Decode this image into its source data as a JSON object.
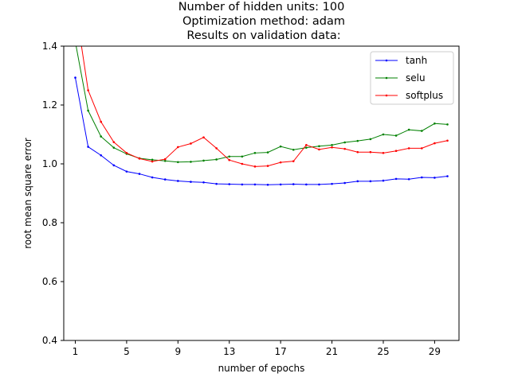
{
  "chart_data": {
    "type": "line",
    "title": [
      "Number of hidden units: 100",
      "Optimization method: adam",
      "Results on validation data:"
    ],
    "xlabel": "number of epochs",
    "ylabel": "root mean square error",
    "xlim": [
      0.1,
      30.9
    ],
    "ylim": [
      0.4,
      1.4
    ],
    "xticks": [
      1,
      5,
      9,
      13,
      17,
      21,
      25,
      29
    ],
    "yticks": [
      0.4,
      0.6,
      0.8,
      1.0,
      1.2,
      1.4
    ],
    "ytick_labels": [
      "0.4",
      "0.6",
      "0.8",
      "1.0",
      "1.2",
      "1.4"
    ],
    "legend_position": "top-right",
    "grid": false,
    "x": [
      1,
      2,
      3,
      4,
      5,
      6,
      7,
      8,
      9,
      10,
      11,
      12,
      13,
      14,
      15,
      16,
      17,
      18,
      19,
      20,
      21,
      22,
      23,
      24,
      25,
      26,
      27,
      28,
      29,
      30
    ],
    "series": [
      {
        "name": "tanh",
        "color": "#0000ff",
        "values": [
          1.293,
          1.058,
          1.029,
          0.995,
          0.974,
          0.966,
          0.954,
          0.947,
          0.942,
          0.939,
          0.937,
          0.932,
          0.931,
          0.93,
          0.93,
          0.929,
          0.93,
          0.931,
          0.93,
          0.93,
          0.932,
          0.935,
          0.941,
          0.941,
          0.943,
          0.949,
          0.948,
          0.954,
          0.953,
          0.958
        ]
      },
      {
        "name": "selu",
        "color": "#008000",
        "values": [
          1.415,
          1.181,
          1.093,
          1.055,
          1.034,
          1.019,
          1.014,
          1.01,
          1.006,
          1.007,
          1.011,
          1.015,
          1.025,
          1.025,
          1.037,
          1.039,
          1.059,
          1.048,
          1.055,
          1.06,
          1.064,
          1.073,
          1.078,
          1.084,
          1.1,
          1.096,
          1.116,
          1.112,
          1.137,
          1.134
        ]
      },
      {
        "name": "softplus",
        "color": "#ff0000",
        "values": [
          1.54,
          1.25,
          1.143,
          1.074,
          1.037,
          1.018,
          1.008,
          1.016,
          1.057,
          1.069,
          1.09,
          1.053,
          1.013,
          1.0,
          0.991,
          0.993,
          1.005,
          1.009,
          1.064,
          1.049,
          1.056,
          1.051,
          1.04,
          1.04,
          1.037,
          1.044,
          1.053,
          1.053,
          1.07,
          1.079
        ]
      }
    ]
  }
}
